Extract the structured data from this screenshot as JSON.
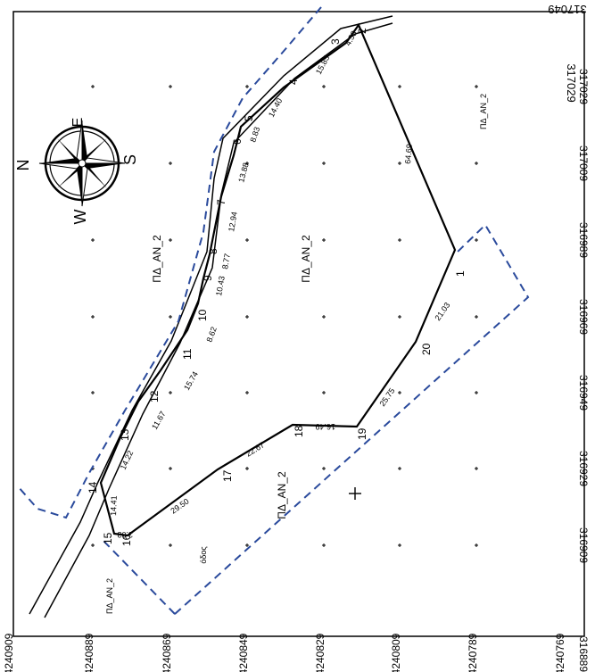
{
  "map": {
    "frame_coords": {
      "top": [
        "317049",
        "317029",
        "317009",
        "316989",
        "316969",
        "316949",
        "316929",
        "316909",
        "316889"
      ],
      "left": [
        "4240909",
        "4240889",
        "4240869",
        "4240849",
        "4240829",
        "4240809",
        "4240789",
        "4240769"
      ]
    },
    "zone_labels": [
      "ΠΔ_ΑΝ_2",
      "ΠΔ_ΑΝ_2",
      "ΠΔ_ΑΝ_2",
      "ΠΔ_ΑΝ_2",
      "ΠΔ_ΑΝ_2"
    ],
    "vertex_labels": [
      "1",
      "2",
      "3",
      "4",
      "5",
      "6",
      "7",
      "8",
      "9",
      "10",
      "11",
      "12",
      "13",
      "14",
      "15",
      "16",
      "17",
      "18",
      "19",
      "20"
    ],
    "segment_lengths": [
      "4.53",
      "15.85",
      "14.40",
      "8.83",
      "13.88",
      "12.94",
      "8.77",
      "10.43",
      "8.62",
      "15.74",
      "11.67",
      "14.22",
      "14.41",
      "3.03",
      "29.50",
      "22.67",
      "16.49",
      "25.75",
      "21.03",
      "64.69"
    ],
    "road_label": "όδος",
    "compass": {
      "north": "N",
      "east": "E",
      "south": "S",
      "west": "W"
    },
    "colors": {
      "parcel": "#000000",
      "boundary": "#2a4a9c",
      "road": "#000000"
    }
  }
}
